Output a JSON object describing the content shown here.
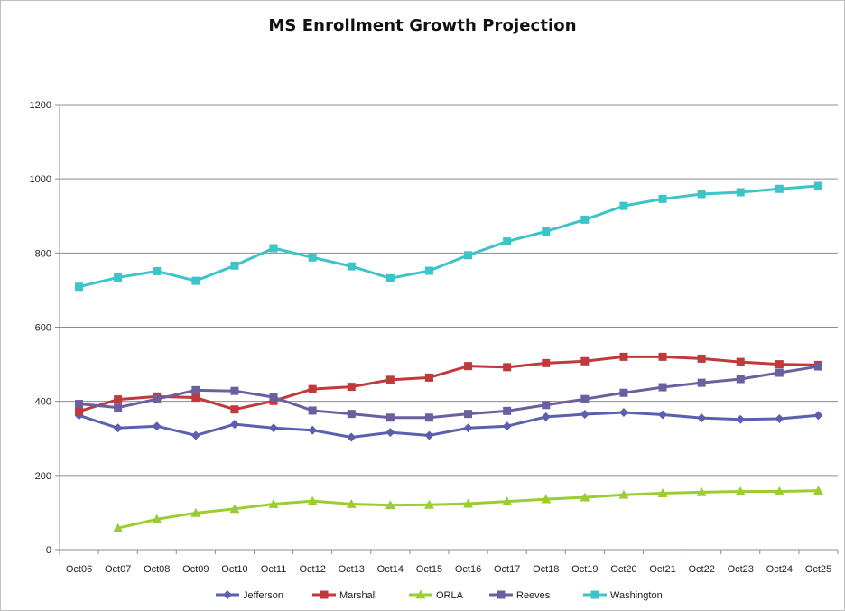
{
  "chart_data": {
    "type": "line",
    "title": "MS Enrollment Growth Projection",
    "xlabel": "",
    "ylabel": "",
    "ylim": [
      0,
      1200
    ],
    "yticks": [
      "0",
      "200",
      "400",
      "600",
      "800",
      "1000",
      "1200"
    ],
    "categories": [
      "Oct06",
      "Oct07",
      "Oct08",
      "Oct09",
      "Oct10",
      "Oct11",
      "Oct12",
      "Oct13",
      "Oct14",
      "Oct15",
      "Oct16",
      "Oct17",
      "Oct18",
      "Oct19",
      "Oct20",
      "Oct21",
      "Oct22",
      "Oct23",
      "Oct24",
      "Oct25"
    ],
    "grid": "horizontal",
    "legend_position": "bottom",
    "series": [
      {
        "name": "Jefferson",
        "color": "#5b5fae",
        "marker": "diamond",
        "values": [
          362,
          328,
          333,
          308,
          338,
          328,
          322,
          303,
          316,
          308,
          328,
          333,
          358,
          365,
          370,
          364,
          355,
          351,
          353,
          362
        ]
      },
      {
        "name": "Marshall",
        "color": "#c0393b",
        "marker": "square",
        "values": [
          373,
          405,
          413,
          410,
          378,
          401,
          433,
          439,
          458,
          464,
          495,
          492,
          503,
          508,
          520,
          520,
          515,
          506,
          500,
          498
        ]
      },
      {
        "name": "ORLA",
        "color": "#9acd32",
        "marker": "triangle",
        "values": [
          null,
          58,
          82,
          99,
          110,
          123,
          131,
          123,
          120,
          121,
          124,
          130,
          136,
          141,
          148,
          152,
          155,
          157,
          157,
          159
        ]
      },
      {
        "name": "Reeves",
        "color": "#6c5fa0",
        "marker": "square",
        "values": [
          393,
          383,
          406,
          430,
          428,
          411,
          375,
          366,
          356,
          356,
          366,
          374,
          390,
          406,
          423,
          438,
          450,
          460,
          477,
          494
        ]
      },
      {
        "name": "Washington",
        "color": "#3cc4c8",
        "marker": "square",
        "values": [
          709,
          734,
          751,
          725,
          766,
          813,
          788,
          764,
          732,
          752,
          794,
          831,
          858,
          890,
          927,
          946,
          959,
          964,
          973,
          981
        ]
      }
    ]
  }
}
